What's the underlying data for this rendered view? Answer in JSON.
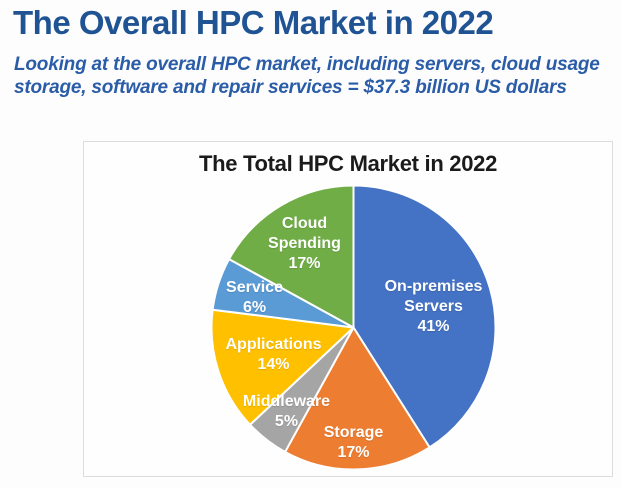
{
  "header": {
    "title": "The Overall HPC Market in 2022",
    "subtitle_line1": "Looking at the overall HPC market, including servers, cloud usage",
    "subtitle_line2": "storage, software and repair services = $37.3 billion US dollars"
  },
  "chart_data": {
    "type": "pie",
    "title": "The Total HPC Market in 2022",
    "total_value_label": "$37.3 billion US dollars",
    "start_angle_deg": 0,
    "direction": "clockwise",
    "legend_position": "none",
    "slices": [
      {
        "label": "On-premises Servers",
        "value": 41,
        "unit": "%",
        "color": "#4472C4",
        "label_lines": [
          "On-premises",
          "Servers",
          "41%"
        ],
        "label_offset": [
          80,
          -21
        ]
      },
      {
        "label": "Storage",
        "value": 17,
        "unit": "%",
        "color": "#ED7D31",
        "label_lines": [
          "Storage",
          "17%"
        ],
        "label_offset": [
          0,
          115
        ]
      },
      {
        "label": "Middleware",
        "value": 5,
        "unit": "%",
        "color": "#A5A5A5",
        "label_lines": [
          "Middleware",
          "5%"
        ],
        "label_offset": [
          -67,
          84
        ]
      },
      {
        "label": "Applications",
        "value": 14,
        "unit": "%",
        "color": "#FFC000",
        "label_lines": [
          "Applications",
          "14%"
        ],
        "label_offset": [
          -80,
          27
        ]
      },
      {
        "label": "Service",
        "value": 6,
        "unit": "%",
        "color": "#5B9BD5",
        "label_lines": [
          "Service",
          "6%"
        ],
        "label_offset": [
          -99,
          -30
        ]
      },
      {
        "label": "Cloud Spending",
        "value": 17,
        "unit": "%",
        "color": "#70AD47",
        "label_lines": [
          "Cloud",
          "Spending",
          "17%"
        ],
        "label_offset": [
          -49,
          -84
        ]
      }
    ]
  },
  "colors": {
    "title_text": "#1F5393",
    "subtitle_text": "#2A5CA8",
    "chart_title_text": "#1B1B1B",
    "panel_border": "#DCDCDC",
    "slice_label_text": "#FFFFFF",
    "slice_border": "#FFFFFF"
  }
}
